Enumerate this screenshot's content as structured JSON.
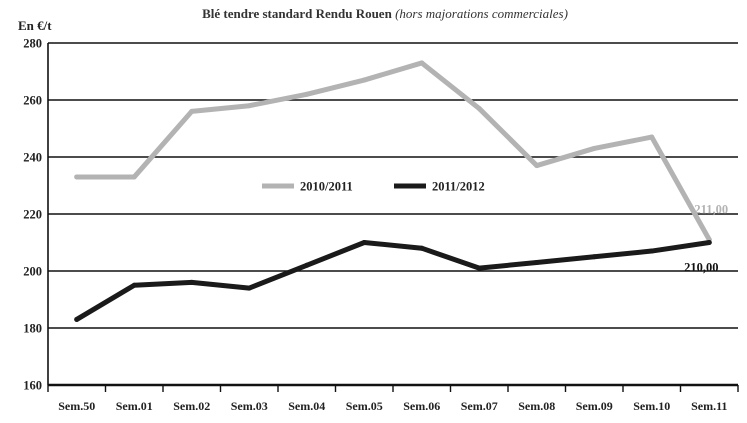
{
  "chart_data": {
    "type": "line",
    "title": "Blé tendre standard Rendu Rouen",
    "subtitle": "(hors majorations commerciales)",
    "ylabel": "En €/t",
    "xlabel": "",
    "ylim": [
      160,
      280
    ],
    "yticks": [
      160,
      180,
      200,
      220,
      240,
      260,
      280
    ],
    "grid": true,
    "legend_position": "center",
    "categories": [
      "Sem.50",
      "Sem.01",
      "Sem.02",
      "Sem.03",
      "Sem.04",
      "Sem.05",
      "Sem.06",
      "Sem.07",
      "Sem.08",
      "Sem.09",
      "Sem.10",
      "Sem.11"
    ],
    "series": [
      {
        "name": "2010/2011",
        "color": "#b3b3b3",
        "values": [
          233,
          233,
          256,
          258,
          262,
          267,
          273,
          257,
          237,
          243,
          247,
          211
        ],
        "end_label": "211,00"
      },
      {
        "name": "2011/2012",
        "color": "#1a1a1a",
        "values": [
          183,
          195,
          196,
          194,
          202,
          210,
          208,
          201,
          203,
          205,
          207,
          210
        ],
        "end_label": "210,00"
      }
    ]
  }
}
